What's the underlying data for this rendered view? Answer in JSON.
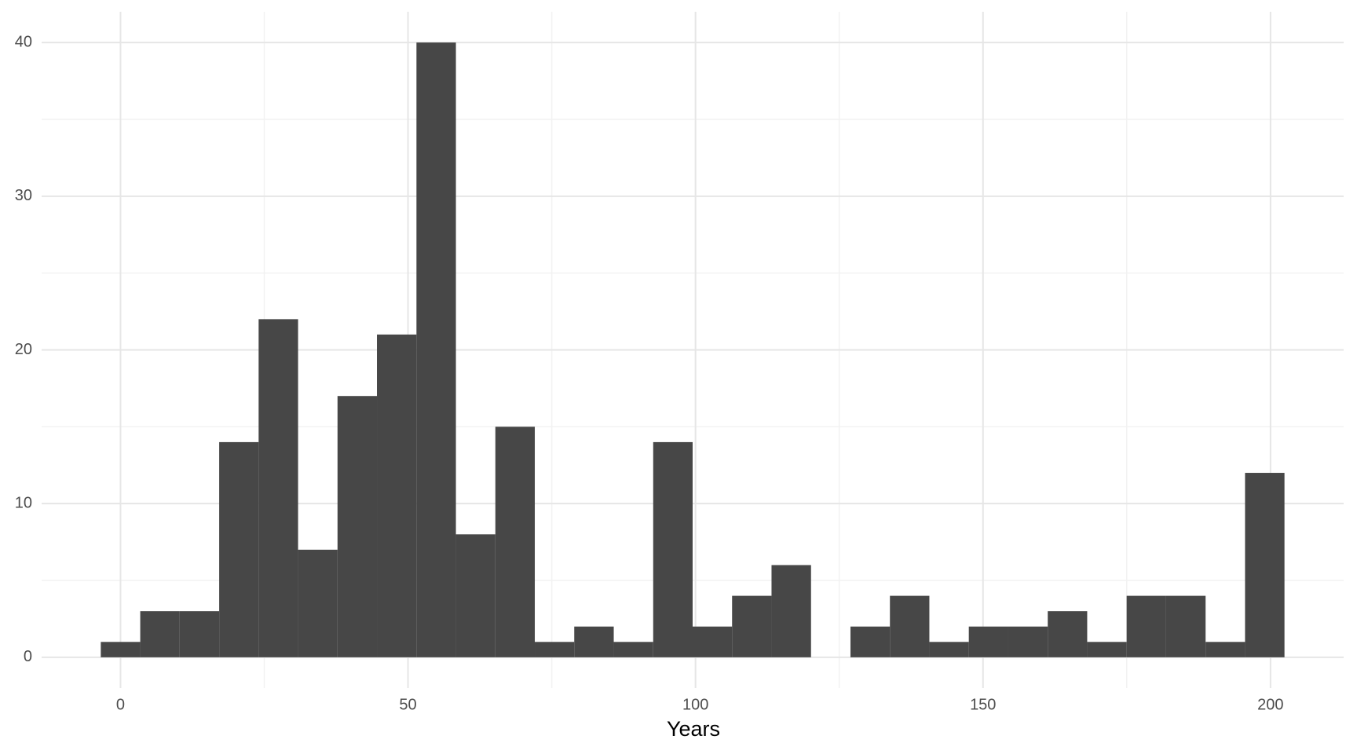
{
  "chart_data": {
    "type": "histogram",
    "x_label": "Years",
    "bins": [
      -3.43,
      3.43,
      10.29,
      17.16,
      24.02,
      30.88,
      37.74,
      44.6,
      51.47,
      58.33,
      65.19,
      72.05,
      78.91,
      85.78,
      92.64,
      99.5,
      106.36,
      113.22,
      120.09,
      126.95,
      133.81,
      140.67,
      147.53,
      154.4,
      161.26,
      168.12,
      174.98,
      181.84,
      188.71,
      195.57,
      202.43
    ],
    "values": [
      1,
      3,
      3,
      14,
      22,
      7,
      17,
      21,
      40,
      8,
      15,
      1,
      2,
      1,
      14,
      2,
      4,
      6,
      0,
      2,
      4,
      1,
      2,
      2,
      3,
      1,
      4,
      4,
      1,
      12
    ],
    "color": "#474747",
    "xlim": [
      -13.72,
      212.72
    ],
    "xticks": [
      0,
      50,
      100,
      150,
      200
    ],
    "xminor": [
      25,
      75,
      125,
      175
    ],
    "ylim": [
      -2,
      42
    ],
    "yticks": [
      0,
      10,
      20,
      30,
      40
    ],
    "yminor": [
      5,
      15,
      25,
      35
    ],
    "grid": true
  }
}
